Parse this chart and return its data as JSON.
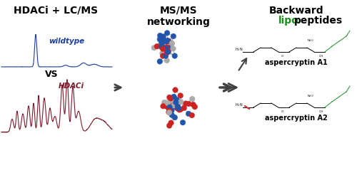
{
  "title_left": "HDACi + LC/MS",
  "title_mid": "MS/MS\nnetworking",
  "title_right_black": "Backward",
  "title_right_green": "lipo",
  "title_right_rest": "peptides",
  "label_wildtype": "wildtype",
  "label_hdaci": "HDACi",
  "label_vs": "VS",
  "label_a1": "aspercryptin A1",
  "label_a2": "aspercryptin A2",
  "blue_color": "#1a3d9e",
  "dark_red_color": "#7b1a2a",
  "green_color": "#1a8c1a",
  "arrow_color": "#404040",
  "bg_color": "#ffffff",
  "network_blue": "#2255aa",
  "network_red": "#cc2222",
  "network_gray": "#aaaaaa"
}
